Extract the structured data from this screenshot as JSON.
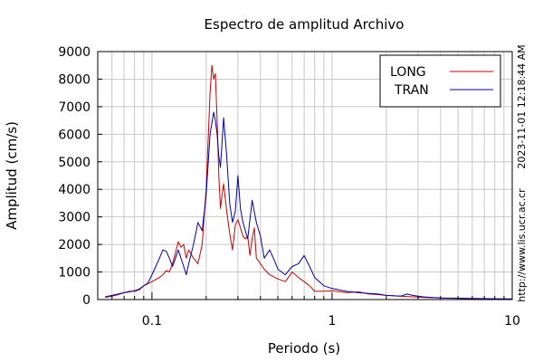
{
  "chart_data": {
    "type": "line",
    "title": "Espectro de amplitud Archivo",
    "xlabel": "Periodo (s)",
    "ylabel": "Amplitud (cm/s)",
    "x_scale": "log",
    "xlim": [
      0.05,
      10
    ],
    "ylim": [
      0,
      9000
    ],
    "x_ticks": [
      0.1,
      1,
      10
    ],
    "x_tick_labels": [
      "0.1",
      "1",
      "10"
    ],
    "y_ticks": [
      0,
      1000,
      2000,
      3000,
      4000,
      5000,
      6000,
      7000,
      8000,
      9000
    ],
    "y_tick_labels": [
      "0",
      "1000",
      "2000",
      "3000",
      "4000",
      "5000",
      "6000",
      "7000",
      "8000",
      "9000"
    ],
    "grid": true,
    "legend_position": "top-right",
    "side_texts": [
      "2023-11-01 12:18:44 AM",
      "http://www.lis.ucr.ac.cr"
    ],
    "series": [
      {
        "name": "LONG",
        "color": "#cc0000",
        "x": [
          0.055,
          0.06,
          0.065,
          0.07,
          0.075,
          0.08,
          0.085,
          0.09,
          0.1,
          0.11,
          0.115,
          0.12,
          0.125,
          0.13,
          0.135,
          0.14,
          0.145,
          0.15,
          0.155,
          0.16,
          0.17,
          0.18,
          0.19,
          0.2,
          0.21,
          0.215,
          0.22,
          0.225,
          0.23,
          0.235,
          0.24,
          0.245,
          0.25,
          0.26,
          0.27,
          0.28,
          0.29,
          0.3,
          0.31,
          0.32,
          0.33,
          0.34,
          0.35,
          0.36,
          0.37,
          0.38,
          0.4,
          0.42,
          0.45,
          0.48,
          0.5,
          0.55,
          0.6,
          0.65,
          0.7,
          0.75,
          0.8,
          0.9,
          1.0,
          1.2,
          1.4,
          1.6,
          1.8,
          2.0,
          2.4,
          2.8,
          3.2,
          4.0,
          5.0,
          6.0,
          8.0,
          10.0
        ],
        "y": [
          80,
          120,
          180,
          250,
          300,
          300,
          350,
          500,
          650,
          800,
          900,
          1050,
          1000,
          1300,
          1700,
          2100,
          1900,
          2000,
          1500,
          1800,
          1500,
          1300,
          2000,
          4000,
          7500,
          8500,
          8000,
          8200,
          6500,
          4500,
          3300,
          3800,
          4200,
          3200,
          2400,
          1800,
          2700,
          2900,
          2600,
          2300,
          2200,
          2300,
          1600,
          2200,
          2600,
          1500,
          1300,
          1100,
          900,
          800,
          750,
          650,
          1000,
          800,
          650,
          500,
          300,
          300,
          320,
          250,
          280,
          200,
          180,
          150,
          120,
          100,
          80,
          60,
          40,
          30,
          20,
          20
        ]
      },
      {
        "name": "TRAN",
        "color": "#0000aa",
        "x": [
          0.055,
          0.06,
          0.065,
          0.07,
          0.075,
          0.08,
          0.085,
          0.09,
          0.095,
          0.1,
          0.105,
          0.11,
          0.115,
          0.12,
          0.125,
          0.13,
          0.135,
          0.14,
          0.145,
          0.15,
          0.155,
          0.16,
          0.17,
          0.18,
          0.19,
          0.2,
          0.21,
          0.22,
          0.225,
          0.23,
          0.235,
          0.24,
          0.25,
          0.26,
          0.27,
          0.28,
          0.29,
          0.3,
          0.31,
          0.32,
          0.34,
          0.36,
          0.38,
          0.4,
          0.42,
          0.45,
          0.48,
          0.5,
          0.55,
          0.6,
          0.65,
          0.7,
          0.75,
          0.8,
          0.9,
          1.0,
          1.2,
          1.4,
          1.6,
          1.8,
          2.0,
          2.4,
          2.6,
          2.8,
          3.2,
          4.0,
          5.0,
          6.0,
          8.0,
          10.0
        ],
        "y": [
          100,
          150,
          200,
          250,
          280,
          320,
          380,
          500,
          600,
          900,
          1200,
          1500,
          1800,
          1750,
          1500,
          1200,
          1500,
          1800,
          1500,
          1200,
          900,
          1300,
          2000,
          2800,
          2500,
          3800,
          6000,
          6800,
          6500,
          6000,
          5200,
          4800,
          6600,
          5200,
          3500,
          2800,
          3200,
          4500,
          3300,
          2800,
          2200,
          3600,
          2800,
          2300,
          1500,
          1800,
          1400,
          1100,
          900,
          1200,
          1300,
          1600,
          1200,
          800,
          500,
          400,
          300,
          250,
          220,
          200,
          150,
          120,
          200,
          150,
          100,
          60,
          50,
          40,
          30,
          20
        ]
      }
    ]
  }
}
